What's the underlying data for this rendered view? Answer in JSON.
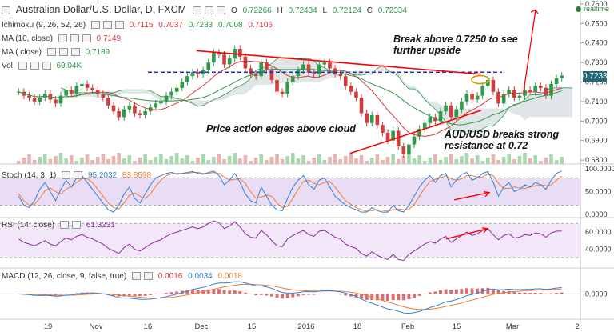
{
  "header": {
    "symbol": "Australian Dollar/U.S. Dollar, D, FXCM",
    "ohlc": {
      "o": "O",
      "o_val": "0.72266",
      "h": "H",
      "h_val": "0.72434",
      "l": "L",
      "l_val": "0.72124",
      "c": "C",
      "c_val": "0.72334"
    },
    "realtime": "realtime"
  },
  "indicators": {
    "ichimoku": {
      "label": "Ichimoku (9, 26, 52, 26)",
      "values": [
        "0.7115",
        "0.7037",
        "0.7233",
        "0.7008",
        "0.7106"
      ]
    },
    "ma10": {
      "label": "MA (10, close)",
      "value": "0.7149"
    },
    "ma_close": {
      "label": "MA (   close)",
      "value": "0.7189"
    },
    "vol": {
      "label": "Vol",
      "value": "69.04K"
    },
    "stoch": {
      "label": "Stoch (14, 3, 1)",
      "k": "95.2032",
      "d": "83.8598"
    },
    "rsi": {
      "label": "RSI (14, close)",
      "value": "61.3231"
    },
    "macd": {
      "label": "MACD (12, 26, close, 9, false, true)",
      "values": [
        "0.0016",
        "0.0034",
        "0.0018"
      ]
    }
  },
  "price_tag": "0.7233",
  "annotations": {
    "break_above": "Break above 0.7250 to see further upside",
    "price_action": "Price action edges above cloud",
    "breaks_strong": "AUD/USD breaks strong resistance at 0.72"
  },
  "colors": {
    "up": "#2f9a4a",
    "down": "#d23c3c",
    "cloud": "#c7cfd6",
    "trend": "#ff0000",
    "stoch_k": "#2f7fd8",
    "stoch_d": "#ee7d33",
    "rsi": "#8a2b9c",
    "macd": "#2f7fd8",
    "signal": "#ee7d33",
    "hist": "#d23c3c",
    "dash": "#1f2fd0"
  },
  "chart_data": {
    "type": "candlestick",
    "x_ticks": [
      "19",
      "Nov",
      "16",
      "Dec",
      "15",
      "2016",
      "18",
      "Feb",
      "15",
      "Mar",
      "2"
    ],
    "price_axis": [
      "0.7600",
      "0.7500",
      "0.7400",
      "0.7300",
      "0.7200",
      "0.7100",
      "0.7000",
      "0.6900",
      "0.6800"
    ],
    "ylim": [
      0.678,
      0.762
    ],
    "stoch_axis": [
      "100.0000",
      "50.0000",
      "0.0000"
    ],
    "rsi_axis": [
      "60.0000",
      "40.0000"
    ],
    "macd_axis": [
      "0.0000"
    ],
    "resistance_level": 0.725,
    "close": [
      0.715,
      0.713,
      0.712,
      0.71,
      0.712,
      0.714,
      0.711,
      0.709,
      0.713,
      0.716,
      0.714,
      0.718,
      0.719,
      0.717,
      0.716,
      0.714,
      0.712,
      0.708,
      0.705,
      0.702,
      0.706,
      0.708,
      0.704,
      0.703,
      0.705,
      0.707,
      0.709,
      0.71,
      0.713,
      0.715,
      0.717,
      0.72,
      0.723,
      0.725,
      0.724,
      0.726,
      0.73,
      0.735,
      0.734,
      0.729,
      0.732,
      0.737,
      0.733,
      0.727,
      0.724,
      0.723,
      0.73,
      0.726,
      0.721,
      0.715,
      0.714,
      0.72,
      0.723,
      0.726,
      0.729,
      0.725,
      0.724,
      0.729,
      0.73,
      0.727,
      0.724,
      0.723,
      0.718,
      0.715,
      0.712,
      0.704,
      0.699,
      0.703,
      0.698,
      0.694,
      0.69,
      0.695,
      0.687,
      0.683,
      0.688,
      0.692,
      0.696,
      0.699,
      0.702,
      0.7,
      0.705,
      0.708,
      0.702,
      0.706,
      0.71,
      0.714,
      0.711,
      0.713,
      0.718,
      0.721,
      0.715,
      0.709,
      0.714,
      0.716,
      0.712,
      0.713,
      0.716,
      0.715,
      0.718,
      0.717,
      0.713,
      0.719,
      0.722,
      0.7233
    ],
    "stoch_k": [
      40,
      20,
      15,
      30,
      55,
      70,
      50,
      30,
      55,
      75,
      60,
      80,
      85,
      70,
      55,
      40,
      25,
      10,
      5,
      20,
      45,
      60,
      35,
      25,
      45,
      65,
      80,
      85,
      90,
      92,
      88,
      90,
      92,
      94,
      90,
      88,
      92,
      95,
      85,
      65,
      75,
      90,
      70,
      45,
      30,
      25,
      60,
      40,
      20,
      10,
      8,
      35,
      60,
      75,
      85,
      65,
      55,
      75,
      80,
      60,
      40,
      30,
      20,
      15,
      10,
      5,
      5,
      15,
      8,
      5,
      5,
      20,
      8,
      5,
      20,
      40,
      60,
      75,
      85,
      70,
      85,
      90,
      60,
      75,
      88,
      92,
      75,
      80,
      90,
      94,
      70,
      40,
      60,
      70,
      50,
      55,
      65,
      60,
      70,
      65,
      55,
      75,
      90,
      95
    ],
    "stoch_d": [
      45,
      30,
      20,
      22,
      35,
      52,
      58,
      50,
      45,
      55,
      62,
      70,
      78,
      78,
      70,
      55,
      40,
      25,
      15,
      12,
      25,
      42,
      47,
      40,
      35,
      45,
      62,
      75,
      85,
      89,
      90,
      90,
      90,
      92,
      92,
      90,
      90,
      92,
      90,
      82,
      75,
      77,
      78,
      68,
      50,
      35,
      38,
      42,
      40,
      25,
      15,
      18,
      35,
      55,
      72,
      75,
      68,
      65,
      70,
      72,
      60,
      45,
      30,
      22,
      15,
      10,
      7,
      8,
      10,
      9,
      7,
      10,
      12,
      10,
      11,
      22,
      40,
      58,
      72,
      77,
      80,
      85,
      78,
      75,
      78,
      85,
      85,
      82,
      82,
      88,
      85,
      68,
      57,
      57,
      60,
      58,
      57,
      60,
      63,
      65,
      63,
      65,
      75,
      84
    ],
    "rsi": [
      52,
      48,
      46,
      44,
      47,
      50,
      46,
      44,
      49,
      53,
      51,
      55,
      57,
      54,
      52,
      49,
      46,
      41,
      38,
      35,
      42,
      46,
      40,
      38,
      42,
      46,
      49,
      51,
      55,
      58,
      60,
      62,
      64,
      66,
      64,
      66,
      70,
      73,
      71,
      64,
      67,
      72,
      66,
      58,
      54,
      53,
      62,
      57,
      50,
      44,
      43,
      52,
      56,
      59,
      62,
      57,
      55,
      61,
      62,
      58,
      54,
      52,
      46,
      43,
      41,
      35,
      32,
      37,
      33,
      30,
      28,
      34,
      28,
      27,
      34,
      38,
      42,
      46,
      49,
      47,
      52,
      55,
      48,
      52,
      56,
      60,
      56,
      58,
      62,
      64,
      57,
      51,
      56,
      58,
      53,
      54,
      57,
      56,
      59,
      58,
      54,
      59,
      61,
      61.3
    ]
  }
}
